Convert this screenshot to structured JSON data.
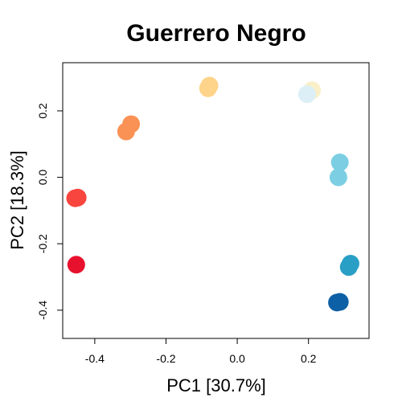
{
  "chart_data": {
    "type": "scatter",
    "title": "Guerrero Negro",
    "xlabel": "PC1 [30.7%]",
    "ylabel": "PC2 [18.3%]",
    "xlim": [
      -0.49,
      0.37
    ],
    "ylim": [
      -0.485,
      0.345
    ],
    "xticks": [
      -0.4,
      -0.2,
      0.0,
      0.2
    ],
    "yticks": [
      -0.4,
      -0.2,
      0.0,
      0.2
    ],
    "xtick_labels": [
      "-0.4",
      "-0.2",
      "0.0",
      "0.2"
    ],
    "ytick_labels": [
      "-0.4",
      "-0.2",
      "0.0",
      "0.2"
    ],
    "grid": false,
    "legend": "none",
    "points": [
      {
        "x": -0.452,
        "y": -0.263,
        "color": "#e8112d"
      },
      {
        "x": -0.455,
        "y": -0.063,
        "color": "#f8453e"
      },
      {
        "x": -0.448,
        "y": -0.061,
        "color": "#f8453e"
      },
      {
        "x": -0.312,
        "y": 0.138,
        "color": "#fa9255"
      },
      {
        "x": -0.298,
        "y": 0.16,
        "color": "#fa9255"
      },
      {
        "x": -0.082,
        "y": 0.268,
        "color": "#fdd48a"
      },
      {
        "x": -0.078,
        "y": 0.276,
        "color": "#fdd48a"
      },
      {
        "x": 0.21,
        "y": 0.262,
        "color": "#f9f0c8"
      },
      {
        "x": 0.196,
        "y": 0.25,
        "color": "#dceff6"
      },
      {
        "x": 0.288,
        "y": 0.045,
        "color": "#7ccfe3"
      },
      {
        "x": 0.284,
        "y": 0.0,
        "color": "#7ccfe3"
      },
      {
        "x": 0.318,
        "y": -0.26,
        "color": "#2a9fc6"
      },
      {
        "x": 0.313,
        "y": -0.27,
        "color": "#2a9fc6"
      },
      {
        "x": 0.288,
        "y": -0.375,
        "color": "#0d60a5"
      },
      {
        "x": 0.28,
        "y": -0.377,
        "color": "#0d60a5"
      }
    ]
  }
}
